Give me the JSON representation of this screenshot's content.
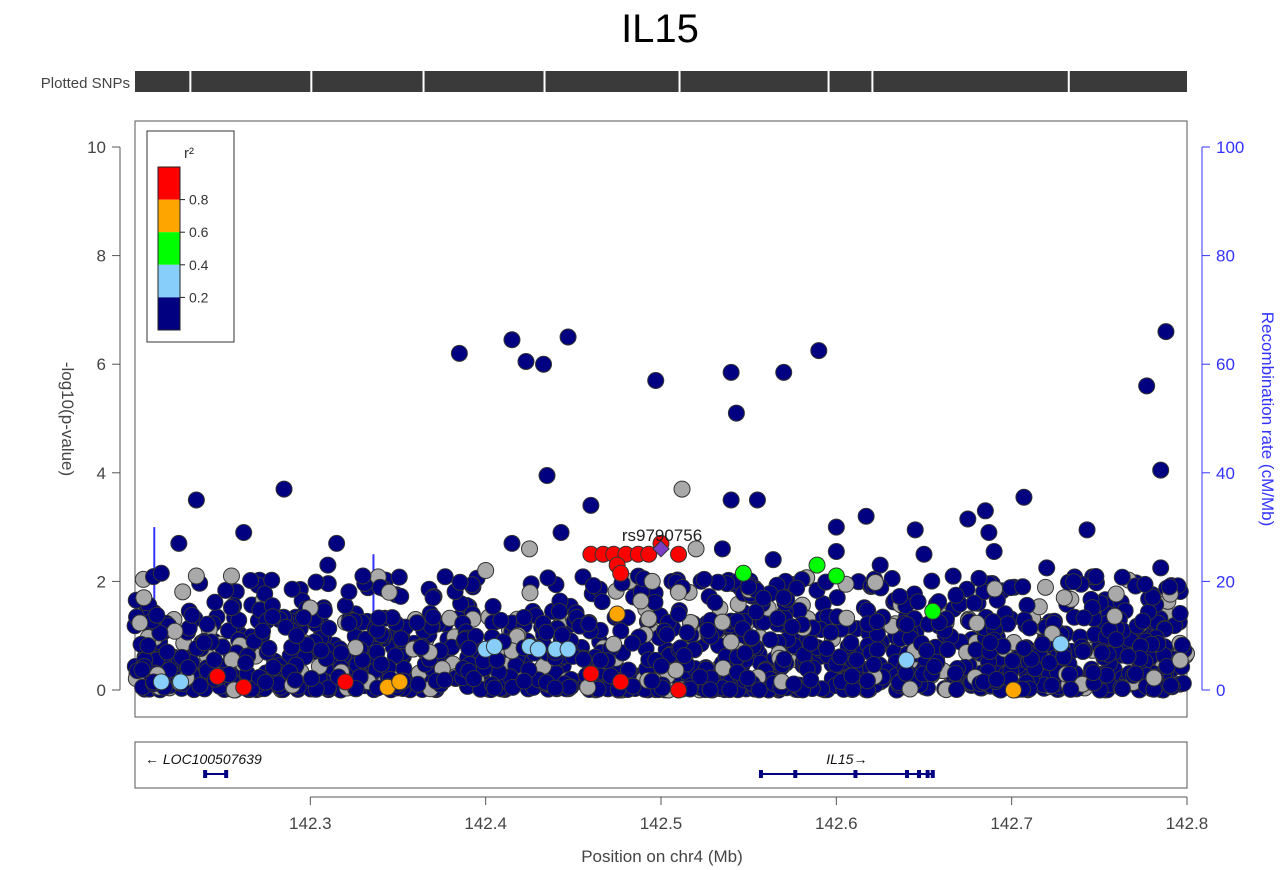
{
  "chart_data": {
    "type": "scatter",
    "title": "IL15",
    "track_label": "Plotted SNPs",
    "xlabel": "Position on chr4 (Mb)",
    "ylabel_left": "-log10(p-value)",
    "ylabel_right": "Recombination rate (cM/Mb)",
    "xlim": [
      142.2,
      142.8
    ],
    "ylim_left": [
      0,
      10
    ],
    "ylim_right": [
      0,
      100
    ],
    "x_ticks": [
      "142.3",
      "142.4",
      "142.5",
      "142.6",
      "142.7",
      "142.8"
    ],
    "y_ticks_left": [
      "0",
      "2",
      "4",
      "6",
      "8",
      "10"
    ],
    "y_ticks_right": [
      "0",
      "20",
      "40",
      "60",
      "80",
      "100"
    ],
    "legend": {
      "title": "r²",
      "placement": "top-left",
      "tick_labels": [
        "0.2",
        "0.4",
        "0.6",
        "0.8"
      ],
      "bins": [
        {
          "color": "#000080"
        },
        {
          "color": "#87CEFA"
        },
        {
          "color": "#00FF00"
        },
        {
          "color": "#FFA500"
        },
        {
          "color": "#FF0000"
        }
      ]
    },
    "lead_snp": {
      "label": "rs9790756",
      "x": 142.5,
      "y": 2.6,
      "color": "#7B3FC4"
    },
    "colors": {
      "navy": "#000080",
      "lightblue": "#87CEFA",
      "green": "#00FF00",
      "orange": "#FFA500",
      "red": "#FF0000",
      "gray": "#A9A9A9",
      "recombination": "#3333ff"
    },
    "highlighted_points": [
      {
        "x": 142.205,
        "y": 1.7,
        "r2": "gray"
      },
      {
        "x": 142.345,
        "y": 1.8,
        "r2": "gray"
      },
      {
        "x": 142.4,
        "y": 2.2,
        "r2": "gray"
      },
      {
        "x": 142.425,
        "y": 2.6,
        "r2": "gray"
      },
      {
        "x": 142.512,
        "y": 3.7,
        "r2": "gray"
      },
      {
        "x": 142.495,
        "y": 2.0,
        "r2": "gray"
      },
      {
        "x": 142.51,
        "y": 1.8,
        "r2": "gray"
      },
      {
        "x": 142.52,
        "y": 2.6,
        "r2": "gray"
      },
      {
        "x": 142.73,
        "y": 1.7,
        "r2": "gray"
      },
      {
        "x": 142.235,
        "y": 2.1,
        "r2": "gray"
      },
      {
        "x": 142.255,
        "y": 2.1,
        "r2": "gray"
      },
      {
        "x": 142.215,
        "y": 0.15,
        "r2": "lightblue"
      },
      {
        "x": 142.226,
        "y": 0.15,
        "r2": "lightblue"
      },
      {
        "x": 142.4,
        "y": 0.75,
        "r2": "lightblue"
      },
      {
        "x": 142.405,
        "y": 0.8,
        "r2": "lightblue"
      },
      {
        "x": 142.425,
        "y": 0.8,
        "r2": "lightblue"
      },
      {
        "x": 142.43,
        "y": 0.75,
        "r2": "lightblue"
      },
      {
        "x": 142.44,
        "y": 0.75,
        "r2": "lightblue"
      },
      {
        "x": 142.447,
        "y": 0.75,
        "r2": "lightblue"
      },
      {
        "x": 142.64,
        "y": 0.55,
        "r2": "lightblue"
      },
      {
        "x": 142.728,
        "y": 0.85,
        "r2": "lightblue"
      },
      {
        "x": 142.547,
        "y": 2.15,
        "r2": "green"
      },
      {
        "x": 142.589,
        "y": 2.3,
        "r2": "green"
      },
      {
        "x": 142.6,
        "y": 2.1,
        "r2": "green"
      },
      {
        "x": 142.655,
        "y": 1.45,
        "r2": "green"
      },
      {
        "x": 142.344,
        "y": 0.05,
        "r2": "orange"
      },
      {
        "x": 142.351,
        "y": 0.15,
        "r2": "orange"
      },
      {
        "x": 142.475,
        "y": 1.4,
        "r2": "orange"
      },
      {
        "x": 142.701,
        "y": 0.0,
        "r2": "orange"
      },
      {
        "x": 142.247,
        "y": 0.25,
        "r2": "red"
      },
      {
        "x": 142.262,
        "y": 0.05,
        "r2": "red"
      },
      {
        "x": 142.32,
        "y": 0.15,
        "r2": "red"
      },
      {
        "x": 142.46,
        "y": 0.3,
        "r2": "red"
      },
      {
        "x": 142.477,
        "y": 0.15,
        "r2": "red"
      },
      {
        "x": 142.51,
        "y": 0.0,
        "r2": "red"
      },
      {
        "x": 142.46,
        "y": 2.5,
        "r2": "red"
      },
      {
        "x": 142.467,
        "y": 2.5,
        "r2": "red"
      },
      {
        "x": 142.473,
        "y": 2.5,
        "r2": "red"
      },
      {
        "x": 142.48,
        "y": 2.5,
        "r2": "red"
      },
      {
        "x": 142.487,
        "y": 2.5,
        "r2": "red"
      },
      {
        "x": 142.493,
        "y": 2.5,
        "r2": "red"
      },
      {
        "x": 142.475,
        "y": 2.3,
        "r2": "red"
      },
      {
        "x": 142.477,
        "y": 2.15,
        "r2": "red"
      },
      {
        "x": 142.5,
        "y": 2.7,
        "r2": "red"
      },
      {
        "x": 142.51,
        "y": 2.5,
        "r2": "red"
      }
    ],
    "navy_points": [
      {
        "x": 142.385,
        "y": 6.2
      },
      {
        "x": 142.415,
        "y": 6.45
      },
      {
        "x": 142.423,
        "y": 6.05
      },
      {
        "x": 142.433,
        "y": 6.0
      },
      {
        "x": 142.447,
        "y": 6.5
      },
      {
        "x": 142.497,
        "y": 5.7
      },
      {
        "x": 142.54,
        "y": 5.85
      },
      {
        "x": 142.543,
        "y": 5.1
      },
      {
        "x": 142.57,
        "y": 5.85
      },
      {
        "x": 142.59,
        "y": 6.25
      },
      {
        "x": 142.777,
        "y": 5.6
      },
      {
        "x": 142.788,
        "y": 6.6
      },
      {
        "x": 142.785,
        "y": 4.05
      },
      {
        "x": 142.435,
        "y": 3.95
      },
      {
        "x": 142.235,
        "y": 3.5
      },
      {
        "x": 142.285,
        "y": 3.7
      },
      {
        "x": 142.54,
        "y": 3.5
      },
      {
        "x": 142.555,
        "y": 3.5
      },
      {
        "x": 142.707,
        "y": 3.55
      },
      {
        "x": 142.46,
        "y": 3.4
      },
      {
        "x": 142.225,
        "y": 2.7
      },
      {
        "x": 142.262,
        "y": 2.9
      },
      {
        "x": 142.315,
        "y": 2.7
      },
      {
        "x": 142.443,
        "y": 2.9
      },
      {
        "x": 142.415,
        "y": 2.7
      },
      {
        "x": 142.6,
        "y": 3.0
      },
      {
        "x": 142.617,
        "y": 3.2
      },
      {
        "x": 142.645,
        "y": 2.95
      },
      {
        "x": 142.675,
        "y": 3.15
      },
      {
        "x": 142.685,
        "y": 3.3
      },
      {
        "x": 142.743,
        "y": 2.95
      },
      {
        "x": 142.687,
        "y": 2.9
      },
      {
        "x": 142.535,
        "y": 2.6
      },
      {
        "x": 142.564,
        "y": 2.4
      },
      {
        "x": 142.6,
        "y": 2.55
      },
      {
        "x": 142.215,
        "y": 2.15
      },
      {
        "x": 142.31,
        "y": 2.3
      },
      {
        "x": 142.33,
        "y": 2.1
      },
      {
        "x": 142.37,
        "y": 1.7
      },
      {
        "x": 142.55,
        "y": 1.9
      },
      {
        "x": 142.785,
        "y": 2.25
      },
      {
        "x": 142.79,
        "y": 1.9
      },
      {
        "x": 142.72,
        "y": 2.25
      },
      {
        "x": 142.625,
        "y": 2.3
      },
      {
        "x": 142.65,
        "y": 2.5
      },
      {
        "x": 142.69,
        "y": 2.55
      },
      {
        "x": 142.51,
        "y": 1.4
      },
      {
        "x": 142.57,
        "y": 1.7
      }
    ],
    "recombination_rate_bars": [
      {
        "x": 142.211,
        "rate": 30
      },
      {
        "x": 142.336,
        "rate": 25
      }
    ],
    "genes": [
      {
        "name": "LOC100507639",
        "strand": "-",
        "start": 142.24,
        "end": 142.252
      },
      {
        "name": "IL15",
        "strand": "+",
        "start": 142.557,
        "end": 142.655
      }
    ]
  }
}
